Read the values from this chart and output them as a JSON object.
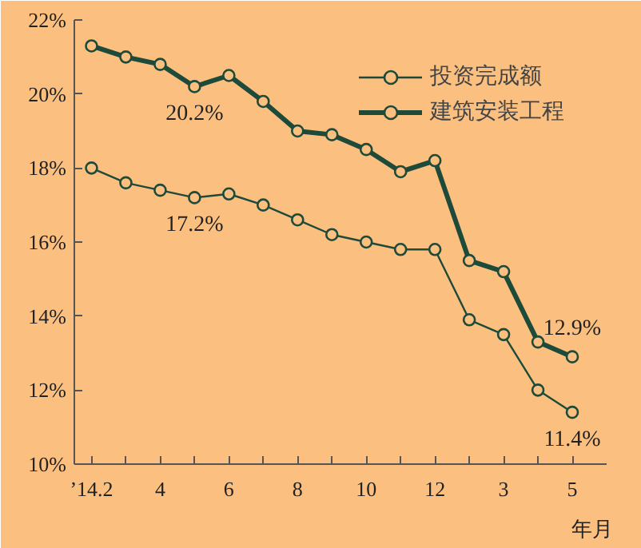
{
  "chart_data": {
    "type": "line",
    "xlabel": "年月",
    "categories": [
      "’14.2",
      null,
      "4",
      null,
      "6",
      null,
      "8",
      null,
      "10",
      null,
      "12",
      null,
      "3",
      null,
      "5"
    ],
    "series": [
      {
        "name": "投资完成额",
        "color": "#1e4a3a",
        "values": [
          18.0,
          17.6,
          17.4,
          17.2,
          17.3,
          17.0,
          16.6,
          16.2,
          16.0,
          15.8,
          15.8,
          13.9,
          13.5,
          12.0,
          11.4
        ],
        "value_labels": [
          null,
          null,
          null,
          "17.2%",
          null,
          null,
          null,
          null,
          null,
          null,
          null,
          null,
          null,
          null,
          "11.4%"
        ]
      },
      {
        "name": "建筑安装工程",
        "color": "#1e4a3a",
        "values": [
          21.3,
          21.0,
          20.8,
          20.2,
          20.5,
          19.8,
          19.0,
          18.9,
          18.5,
          17.9,
          18.2,
          15.5,
          15.2,
          13.3,
          12.9
        ],
        "value_labels": [
          null,
          null,
          null,
          "20.2%",
          null,
          null,
          null,
          null,
          null,
          null,
          null,
          null,
          null,
          null,
          "12.9%"
        ]
      }
    ],
    "ylim": [
      10,
      22
    ],
    "yticks": [
      {
        "value": 10,
        "label": "10%"
      },
      {
        "value": 12,
        "label": "12%"
      },
      {
        "value": 14,
        "label": "14%"
      },
      {
        "value": 16,
        "label": "16%"
      },
      {
        "value": 18,
        "label": "18%"
      },
      {
        "value": 20,
        "label": "20%"
      },
      {
        "value": 22,
        "label": "22%"
      }
    ],
    "grid": false,
    "legend": "top right",
    "marker": "circle",
    "line_style": "solid"
  }
}
